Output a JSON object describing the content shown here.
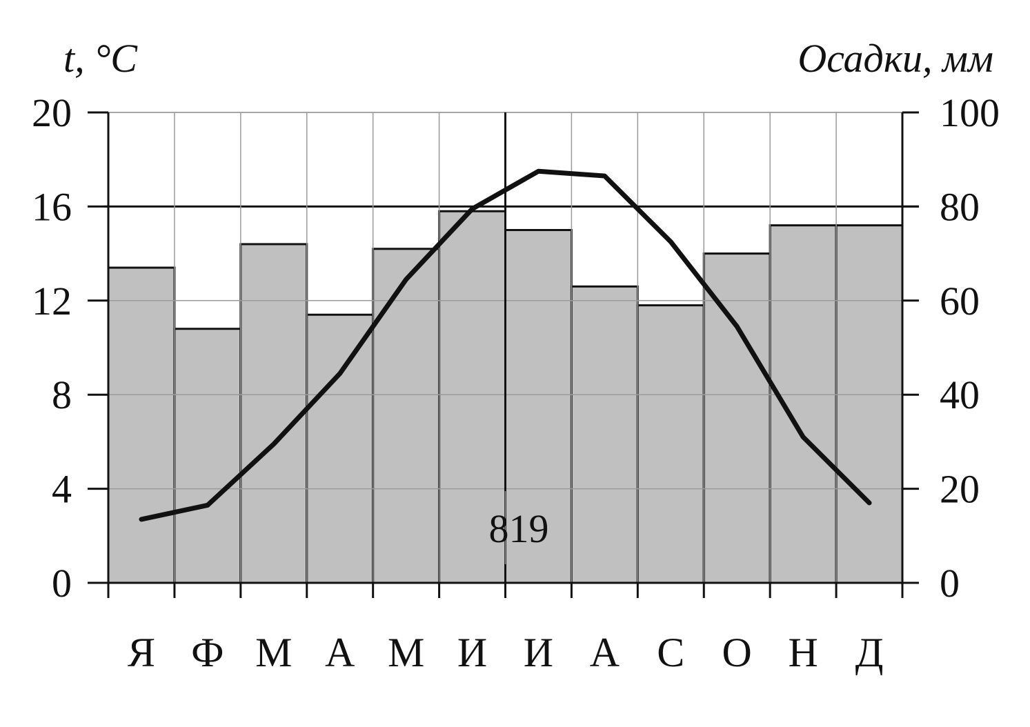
{
  "chart_data": {
    "type": "bar+line",
    "left_axis_label": "t, °C",
    "right_axis_label": "Осадки, мм",
    "categories": [
      "Я",
      "Ф",
      "М",
      "А",
      "М",
      "И",
      "И",
      "А",
      "С",
      "О",
      "Н",
      "Д"
    ],
    "left_ticks": [
      "0",
      "4",
      "8",
      "12",
      "16",
      "20"
    ],
    "right_ticks": [
      "0",
      "20",
      "40",
      "60",
      "80",
      "100"
    ],
    "temperature": {
      "axis": "left",
      "ylim": [
        0,
        20
      ],
      "values": [
        2.7,
        3.3,
        5.9,
        8.9,
        12.9,
        15.9,
        17.5,
        17.3,
        14.5,
        10.9,
        6.2,
        3.4
      ]
    },
    "precipitation": {
      "axis": "right",
      "ylim": [
        0,
        100
      ],
      "values": [
        67,
        54,
        72,
        57,
        71,
        79,
        75,
        63,
        59,
        70,
        76,
        76
      ]
    },
    "annual_precipitation": "819"
  }
}
